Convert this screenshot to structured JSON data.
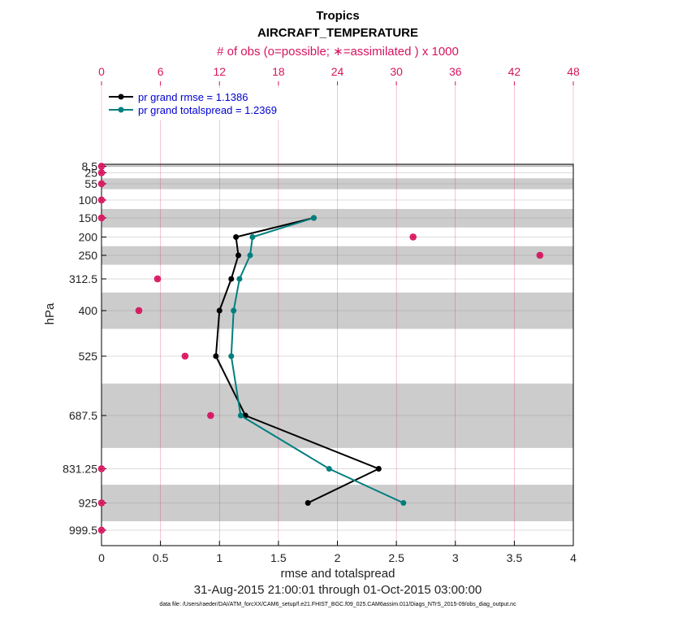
{
  "title_line1": "Tropics",
  "title_line2": "AIRCRAFT_TEMPERATURE",
  "top_axis_label": "# of obs (o=possible; ∗=assimilated ) x 1000",
  "y_axis_label": "hPa",
  "x_axis_label": "rmse and totalspread",
  "date_range": "31-Aug-2015 21:00:01 through 01-Oct-2015 03:00:00",
  "data_file": "data file: /Users/raeder/DAI/ATM_forcXX/CAM6_setup/f.e21.FHIST_BGC.f09_025.CAM6assim.011/Diags_NTrS_2015-09/obs_diag_output.nc",
  "colors": {
    "rmse": "#000000",
    "spread": "#007f7f",
    "obs": "#d6145e",
    "band": "#cccccc",
    "legend_text": "#0000d0"
  },
  "chart_data": {
    "type": "line",
    "x_ticks": [
      "0",
      "0.5",
      "1",
      "1.5",
      "2",
      "2.5",
      "3",
      "3.5",
      "4"
    ],
    "x_tick_values": [
      0,
      0.5,
      1,
      1.5,
      2,
      2.5,
      3,
      3.5,
      4
    ],
    "xlim": [
      0,
      4
    ],
    "top_ticks": [
      "0",
      "6",
      "12",
      "18",
      "24",
      "30",
      "36",
      "42",
      "48"
    ],
    "top_tick_values": [
      0,
      6,
      12,
      18,
      24,
      30,
      36,
      42,
      48
    ],
    "top_xlim": [
      0,
      48
    ],
    "y_levels": [
      "8.5",
      "25",
      "55",
      "100",
      "150",
      "200",
      "250",
      "312.5",
      "400",
      "525",
      "687.5",
      "831.25",
      "925",
      "999.5"
    ],
    "y_level_values": [
      8.5,
      25,
      55,
      100,
      150,
      200,
      250,
      312.5,
      400,
      525,
      687.5,
      831.25,
      925,
      999.5
    ],
    "bands_hPa": [
      [
        0,
        10
      ],
      [
        40,
        70
      ],
      [
        125,
        175
      ],
      [
        225,
        275
      ],
      [
        350,
        450
      ],
      [
        600,
        775
      ],
      [
        875,
        975
      ]
    ],
    "series": [
      {
        "name": "pr grand rmse = 1.1386",
        "color": "#000000",
        "pressure": [
          150,
          200,
          250,
          312.5,
          400,
          525,
          687.5,
          831.25,
          925
        ],
        "values": [
          1.8,
          1.14,
          1.16,
          1.1,
          1.0,
          0.97,
          1.22,
          2.35,
          1.75
        ]
      },
      {
        "name": "pr grand totalspread = 1.2369",
        "color": "#007f7f",
        "pressure": [
          150,
          200,
          250,
          312.5,
          400,
          525,
          687.5,
          831.25,
          925
        ],
        "values": [
          1.8,
          1.28,
          1.26,
          1.17,
          1.12,
          1.1,
          1.18,
          1.93,
          2.56
        ]
      }
    ],
    "obs_counts": {
      "pressure": [
        8.5,
        25,
        55,
        100,
        150,
        200,
        250,
        312.5,
        400,
        525,
        687.5,
        831.25,
        925,
        999.5
      ],
      "possible": [
        0,
        0,
        0,
        0,
        0,
        31.7,
        44.6,
        5.7,
        3.8,
        8.5,
        11.1,
        0,
        0,
        0
      ],
      "assimilated": [
        0,
        0,
        0,
        0,
        0,
        31.7,
        44.6,
        5.7,
        3.8,
        8.5,
        11.1,
        0,
        0,
        0
      ]
    }
  }
}
